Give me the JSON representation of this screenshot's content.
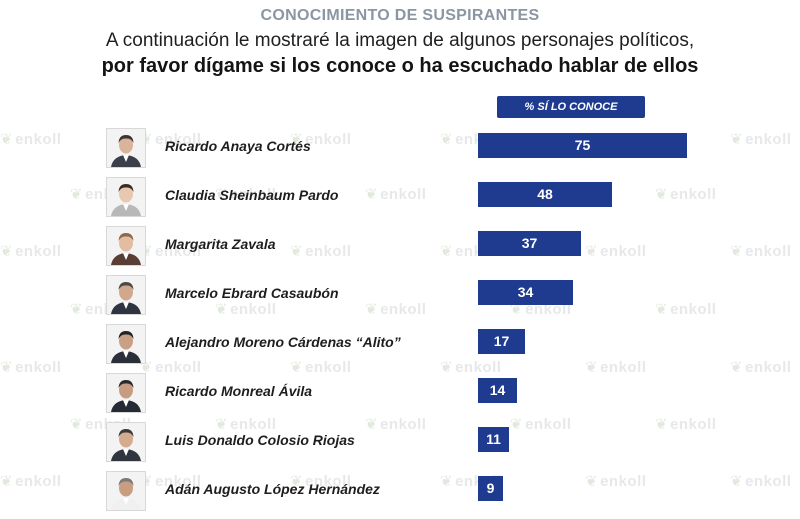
{
  "header": {
    "title": "CONOCIMIENTO DE SUSPIRANTES",
    "subtitle_line1": "A continuación le mostraré la imagen de algunos personajes políticos,",
    "subtitle_line2": "por favor dígame si los conoce o ha escuchado hablar de ellos"
  },
  "watermark_text": "enkoll",
  "colors": {
    "bar": "#1f3b8f",
    "title": "#8b96a3",
    "watermark": "#e6e8ea"
  },
  "chart_data": {
    "type": "bar",
    "orientation": "horizontal",
    "title": "CONOCIMIENTO DE SUSPIRANTES",
    "series_header": "% SÍ LO CONOCE",
    "categories": [
      "Ricardo Anaya Cortés",
      "Claudia Sheinbaum Pardo",
      "Margarita Zavala",
      "Marcelo Ebrard Casaubón",
      "Alejandro Moreno Cárdenas “Alito”",
      "Ricardo Monreal Ávila",
      "Luis Donaldo Colosio Riojas",
      "Adán Augusto López Hernández"
    ],
    "values": [
      75,
      48,
      37,
      34,
      17,
      14,
      11,
      9
    ],
    "xlim": [
      0,
      75
    ],
    "grid": false,
    "legend": "none"
  }
}
